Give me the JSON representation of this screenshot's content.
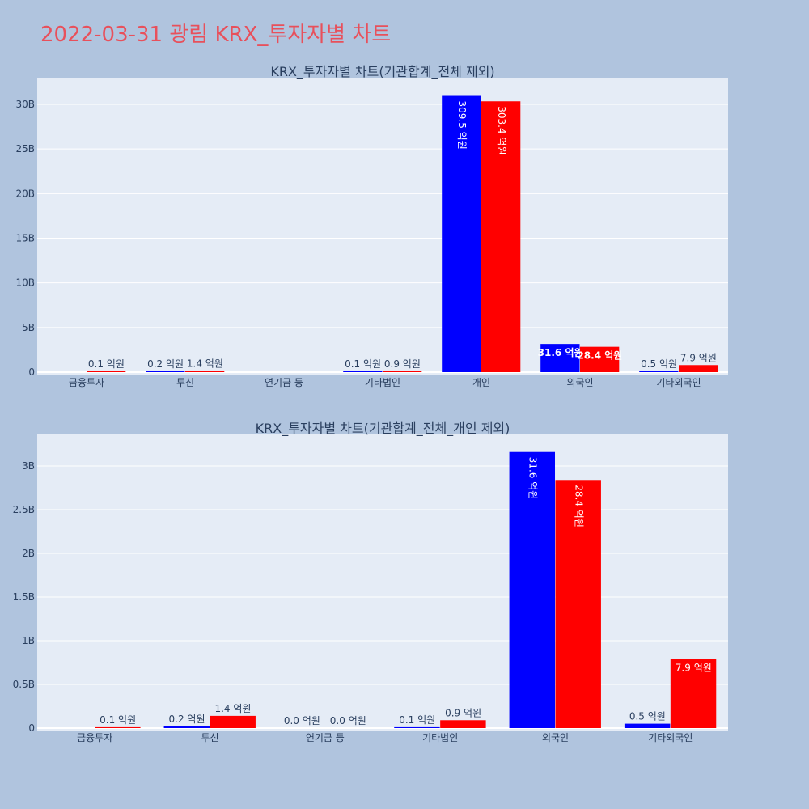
{
  "title": "2022-03-31 광림 KRX_투자자별 차트",
  "colors": {
    "buy": "#0000ff",
    "sell": "#ff0000",
    "background": "#b0c4de",
    "plot_background": "#e5ecf6",
    "title": "#e8505b"
  },
  "chart_data": [
    {
      "type": "bar",
      "title": "KRX_투자자별 차트(기관합계_전체 제외)",
      "categories": [
        "금융투자",
        "투신",
        "연기금 등",
        "기타법인",
        "개인",
        "외국인",
        "기타외국인"
      ],
      "ylim": [
        0,
        33000000000
      ],
      "yticks": [
        0,
        5000000000,
        10000000000,
        15000000000,
        20000000000,
        25000000000,
        30000000000
      ],
      "ytick_labels": [
        "0",
        "5B",
        "10B",
        "15B",
        "20B",
        "25B",
        "30B"
      ],
      "grid": true,
      "series": [
        {
          "color": "#0000ff",
          "values": [
            0,
            20000000,
            null,
            10000000,
            30950000000,
            3160000000,
            50000000
          ],
          "labels": [
            "",
            "0.2 억원",
            "",
            "0.1 억원",
            "309.5 억원",
            "31.6 억원",
            "0.5 억원"
          ]
        },
        {
          "color": "#ff0000",
          "values": [
            10000000,
            140000000,
            null,
            90000000,
            30340000000,
            2840000000,
            790000000
          ],
          "labels": [
            "0.1 억원",
            "1.4 억원",
            "",
            "0.9 억원",
            "303.4 억원",
            "28.4 억원",
            "7.9 억원"
          ]
        }
      ]
    },
    {
      "type": "bar",
      "title": "KRX_투자자별 차트(기관합계_전체_개인 제외)",
      "categories": [
        "금융투자",
        "투신",
        "연기금 등",
        "기타법인",
        "외국인",
        "기타외국인"
      ],
      "ylim": [
        0,
        3350000000
      ],
      "yticks": [
        0,
        500000000,
        1000000000,
        1500000000,
        2000000000,
        2500000000,
        3000000000
      ],
      "ytick_labels": [
        "0",
        "0.5B",
        "1B",
        "1.5B",
        "2B",
        "2.5B",
        "3B"
      ],
      "grid": true,
      "series": [
        {
          "color": "#0000ff",
          "values": [
            0,
            20000000,
            0,
            10000000,
            3160000000,
            50000000
          ],
          "labels": [
            "",
            "0.2 억원",
            "0.0 억원",
            "0.1 억원",
            "31.6 억원",
            "0.5 억원"
          ]
        },
        {
          "color": "#ff0000",
          "values": [
            10000000,
            140000000,
            0,
            90000000,
            2840000000,
            790000000
          ],
          "labels": [
            "0.1 억원",
            "1.4 억원",
            "0.0 억원",
            "0.9 억원",
            "28.4 억원",
            "7.9 억원"
          ]
        }
      ]
    }
  ]
}
